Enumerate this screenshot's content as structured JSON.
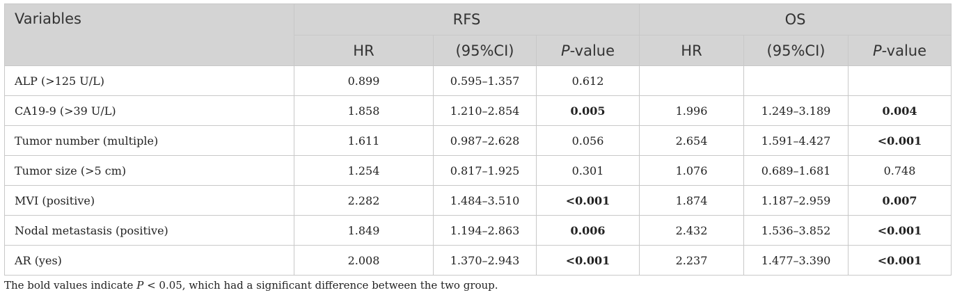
{
  "table": {
    "header": {
      "variables": "Variables",
      "group1": "RFS",
      "group2": "OS",
      "hr": "HR",
      "ci": "(95%CI)",
      "p_italic": "P",
      "p_suffix": "-value"
    },
    "rows": [
      {
        "variable": "ALP (>125 U/L)",
        "rfs_hr": "0.899",
        "rfs_ci": "0.595–1.357",
        "rfs_p": "0.612",
        "rfs_sig": false,
        "os_hr": "",
        "os_ci": "",
        "os_p": "",
        "os_sig": false
      },
      {
        "variable": "CA19-9 (>39 U/L)",
        "rfs_hr": "1.858",
        "rfs_ci": "1.210–2.854",
        "rfs_p": "0.005",
        "rfs_sig": true,
        "os_hr": "1.996",
        "os_ci": "1.249–3.189",
        "os_p": "0.004",
        "os_sig": true
      },
      {
        "variable": "Tumor number (multiple)",
        "rfs_hr": "1.611",
        "rfs_ci": "0.987–2.628",
        "rfs_p": "0.056",
        "rfs_sig": false,
        "os_hr": "2.654",
        "os_ci": "1.591–4.427",
        "os_p": "<0.001",
        "os_sig": true
      },
      {
        "variable": "Tumor size (>5 cm)",
        "rfs_hr": "1.254",
        "rfs_ci": "0.817–1.925",
        "rfs_p": "0.301",
        "rfs_sig": false,
        "os_hr": "1.076",
        "os_ci": "0.689–1.681",
        "os_p": "0.748",
        "os_sig": false
      },
      {
        "variable": "MVI (positive)",
        "rfs_hr": "2.282",
        "rfs_ci": "1.484–3.510",
        "rfs_p": "<0.001",
        "rfs_sig": true,
        "os_hr": "1.874",
        "os_ci": "1.187–2.959",
        "os_p": "0.007",
        "os_sig": true
      },
      {
        "variable": "Nodal metastasis (positive)",
        "rfs_hr": "1.849",
        "rfs_ci": "1.194–2.863",
        "rfs_p": "0.006",
        "rfs_sig": true,
        "os_hr": "2.432",
        "os_ci": "1.536–3.852",
        "os_p": "<0.001",
        "os_sig": true
      },
      {
        "variable": "AR (yes)",
        "rfs_hr": "2.008",
        "rfs_ci": "1.370–2.943",
        "rfs_p": "<0.001",
        "rfs_sig": true,
        "os_hr": "2.237",
        "os_ci": "1.477–3.390",
        "os_p": "<0.001",
        "os_sig": true
      }
    ]
  },
  "footnote": {
    "before": "The bold values indicate ",
    "p_italic": "P",
    "after": " < 0.05, which had a significant difference between the two group."
  },
  "colors": {
    "header_bg": "#d4d4d4",
    "border": "#c8c8c8",
    "text": "#222222"
  }
}
